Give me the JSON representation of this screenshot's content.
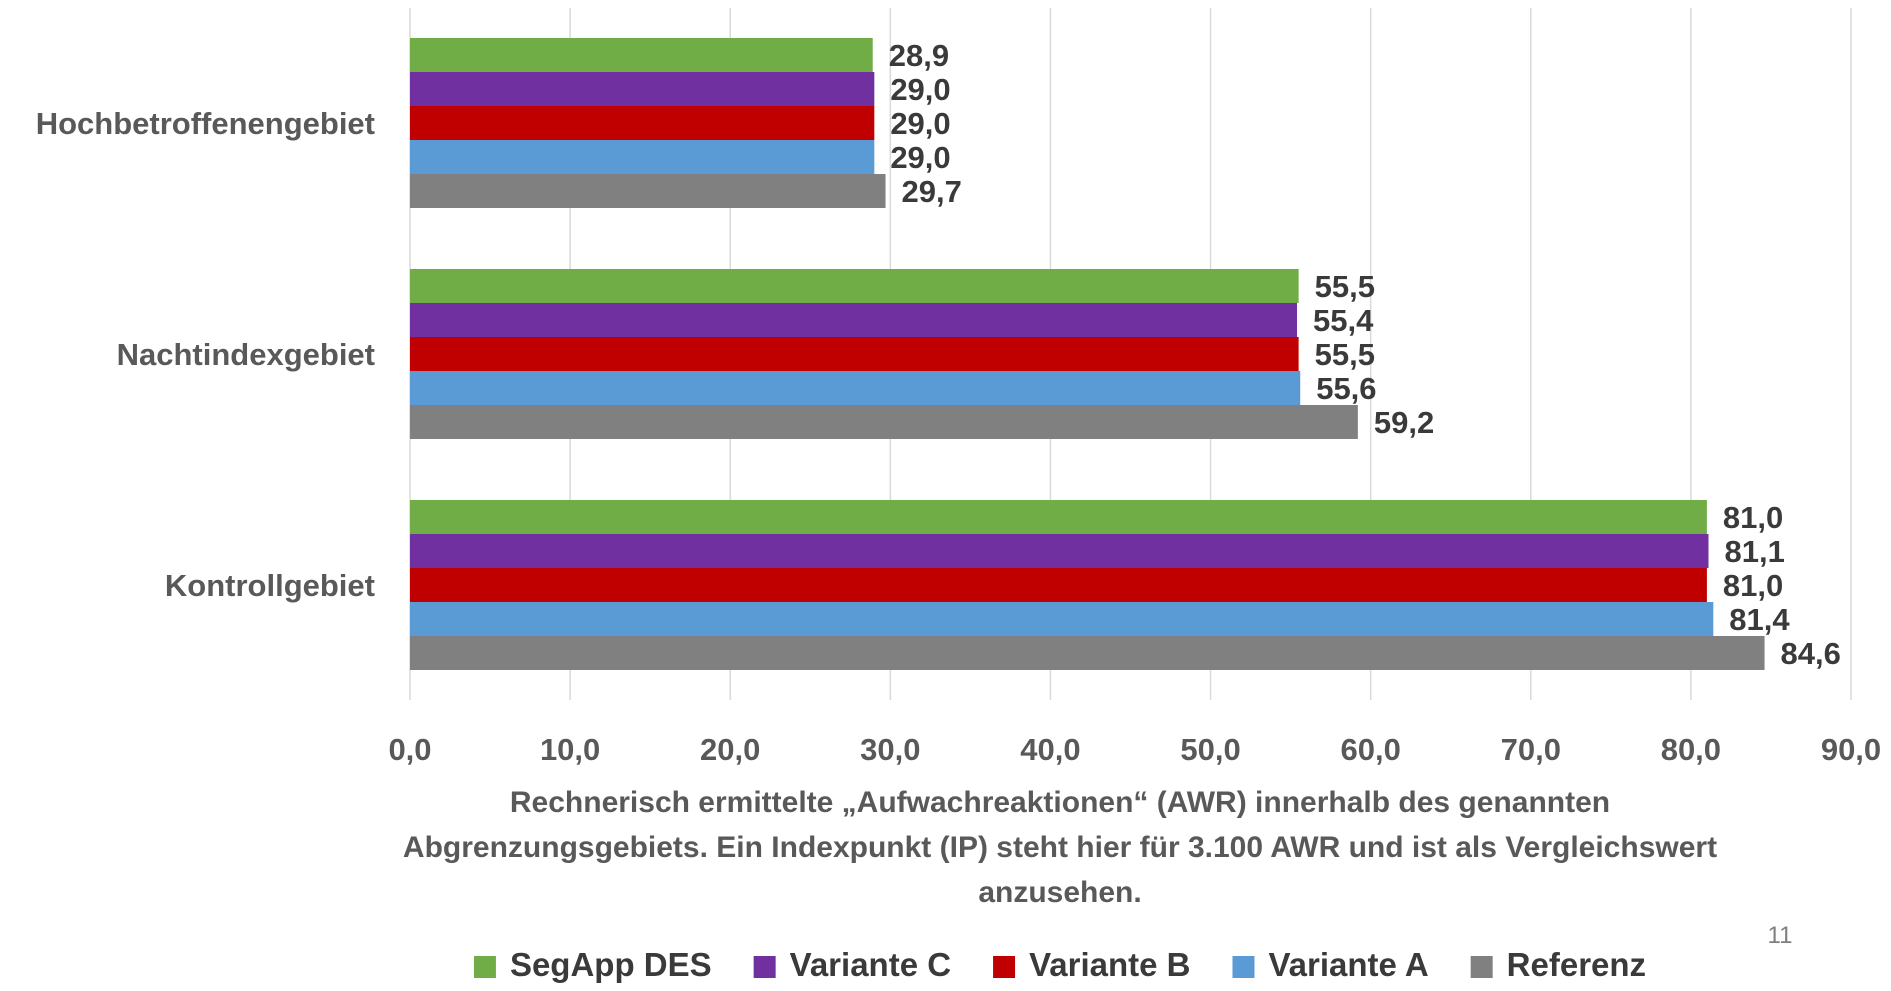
{
  "page_number": "11",
  "chart_data": {
    "type": "bar",
    "orientation": "horizontal",
    "categories": [
      "Hochbetroffenengebiet",
      "Nachtindexgebiet",
      "Kontrollgebiet"
    ],
    "series": [
      {
        "name": "SegApp DES",
        "color": "#70ad47",
        "values": [
          28.9,
          55.5,
          81.0
        ],
        "labels": [
          "28,9",
          "55,5",
          "81,0"
        ]
      },
      {
        "name": "Variante C",
        "color": "#7030a0",
        "values": [
          29.0,
          55.4,
          81.1
        ],
        "labels": [
          "29,0",
          "55,4",
          "81,1"
        ]
      },
      {
        "name": "Variante B",
        "color": "#c00000",
        "values": [
          29.0,
          55.5,
          81.0
        ],
        "labels": [
          "29,0",
          "55,5",
          "81,0"
        ]
      },
      {
        "name": "Variante A",
        "color": "#5b9bd5",
        "values": [
          29.0,
          55.6,
          81.4
        ],
        "labels": [
          "29,0",
          "55,6",
          "81,4"
        ]
      },
      {
        "name": "Referenz",
        "color": "#808080",
        "values": [
          29.7,
          59.2,
          84.6
        ],
        "labels": [
          "29,7",
          "59,2",
          "84,6"
        ]
      }
    ],
    "xlim": [
      0,
      90
    ],
    "xticks": [
      0,
      10,
      20,
      30,
      40,
      50,
      60,
      70,
      80,
      90
    ],
    "xtick_labels": [
      "0,0",
      "10,0",
      "20,0",
      "30,0",
      "40,0",
      "50,0",
      "60,0",
      "70,0",
      "80,0",
      "90,0"
    ],
    "xlabel_lines": [
      "Rechnerisch ermittelte „Aufwachreaktionen“ (AWR) innerhalb des genannten",
      "Abgrenzungsgebiets. Ein Indexpunkt (IP) steht hier für 3.100 AWR und ist als Vergleichswert",
      "anzusehen."
    ],
    "grid": true,
    "legend_position": "bottom"
  }
}
